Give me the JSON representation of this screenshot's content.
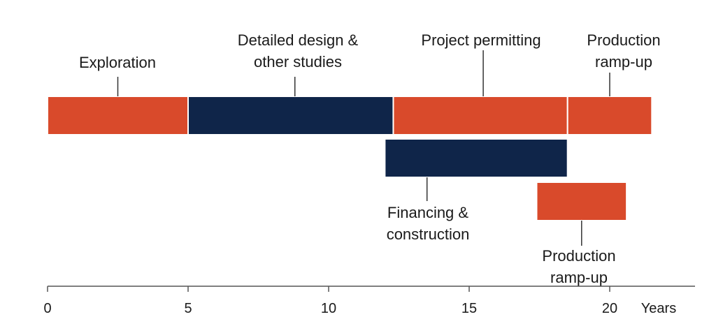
{
  "chart_data": {
    "type": "timeline",
    "x_axis": {
      "min": 0,
      "max": 23,
      "ticks": [
        0,
        5,
        10,
        15,
        20
      ],
      "tick_labels": [
        "0",
        "5",
        "10",
        "15",
        "20"
      ],
      "unit_label": "Years"
    },
    "colors": {
      "orange": "#d94a2b",
      "navy": "#0f2549",
      "axis": "#555555",
      "text": "#1a1a1a"
    },
    "phases": [
      {
        "id": "exploration",
        "label_lines": [
          "Exploration"
        ],
        "start": 0,
        "end": 5,
        "row": 0,
        "color": "orange",
        "label_side": "above",
        "leader_x": 2.5
      },
      {
        "id": "detailed-design",
        "label_lines": [
          "Detailed design &",
          "other studies"
        ],
        "start": 5,
        "end": 12.3,
        "row": 0,
        "color": "navy",
        "label_side": "above",
        "leader_x": 8.8
      },
      {
        "id": "project-permitting",
        "label_lines": [
          "Project permitting"
        ],
        "start": 12.3,
        "end": 18.5,
        "row": 0,
        "color": "orange",
        "label_side": "above",
        "leader_x": 15.5
      },
      {
        "id": "production-ramp-up-top",
        "label_lines": [
          "Production",
          "ramp-up"
        ],
        "start": 18.5,
        "end": 21.5,
        "row": 0,
        "color": "orange",
        "label_side": "above",
        "leader_x": 20.0
      },
      {
        "id": "financing-construction",
        "label_lines": [
          "Financing &",
          "construction"
        ],
        "start": 12,
        "end": 18.5,
        "row": 1,
        "color": "navy",
        "label_side": "below",
        "leader_x": 13.5
      },
      {
        "id": "production-ramp-up-bottom",
        "label_lines": [
          "Production",
          "ramp-up"
        ],
        "start": 17.4,
        "end": 20.6,
        "row": 2,
        "color": "orange",
        "label_side": "below",
        "leader_x": 19.0
      }
    ]
  }
}
